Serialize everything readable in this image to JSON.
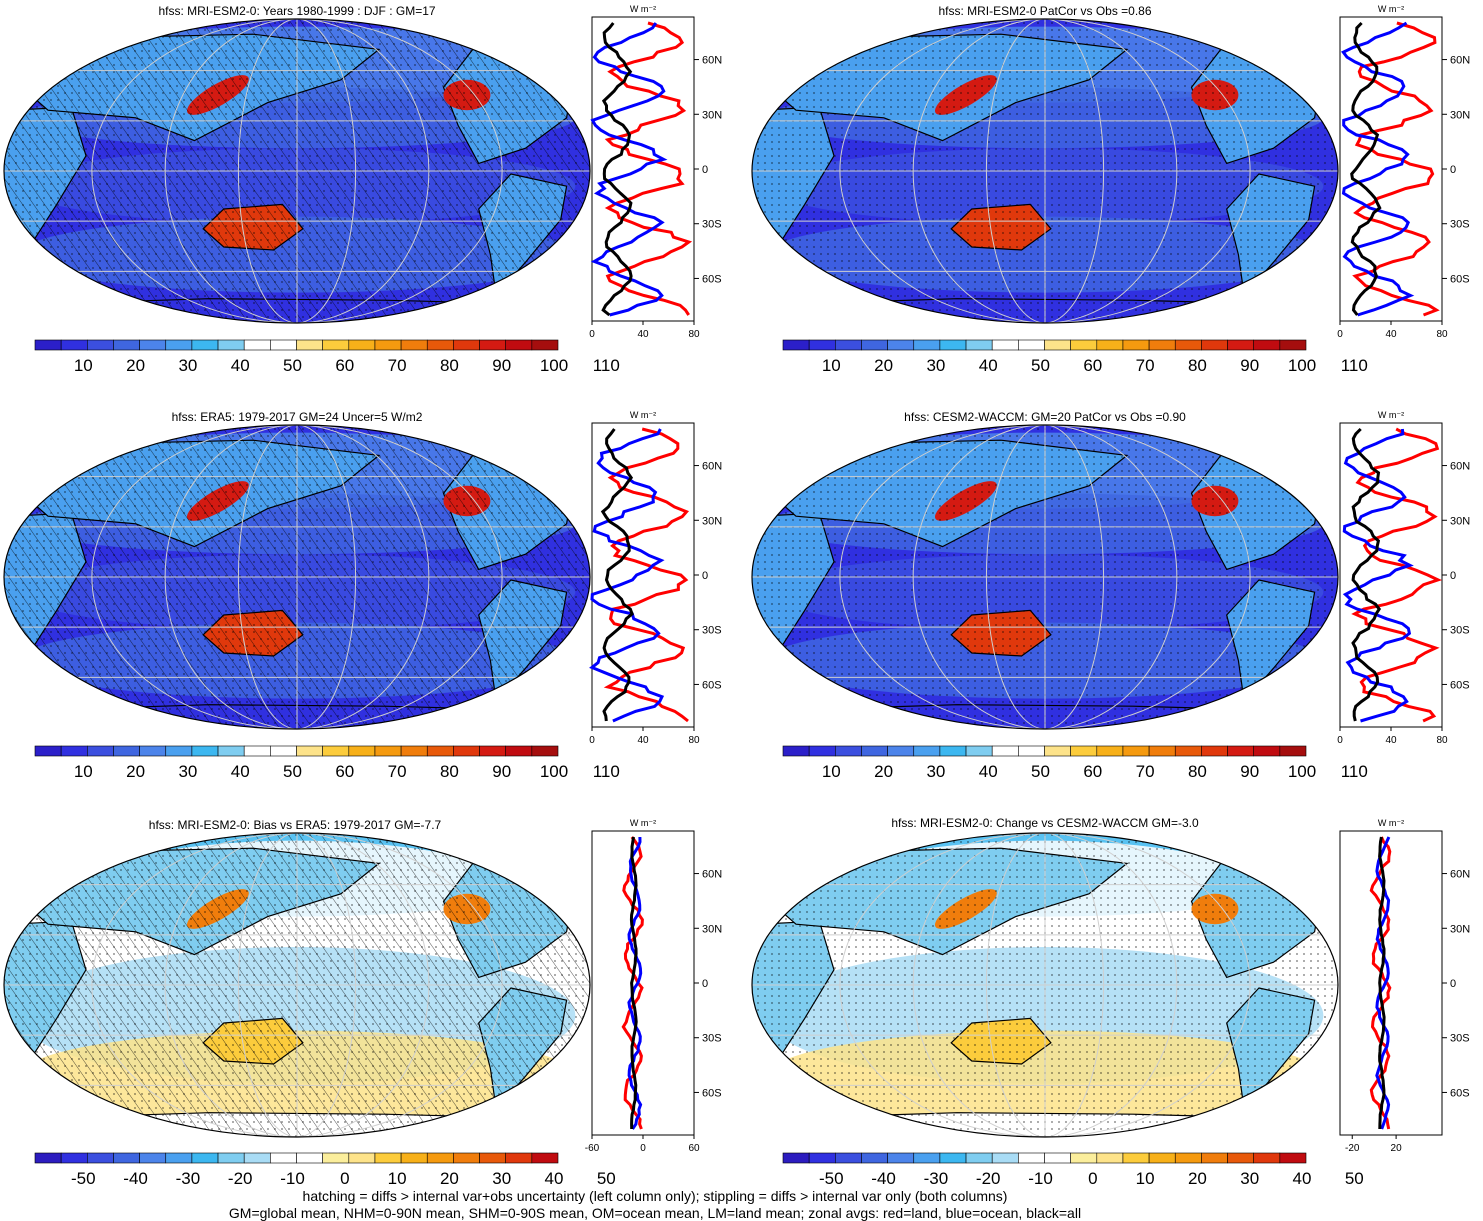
{
  "panels": [
    {
      "title": "hfss: MRI-ESM2-0: Years 1980-1999 : DJF : GM=17",
      "kind": "abs",
      "hatch": true,
      "colorbar": [
        "10",
        "20",
        "30",
        "40",
        "50",
        "60",
        "70",
        "80",
        "90",
        "100",
        "110"
      ],
      "profile": {
        "unit": "W m⁻²",
        "xticks": [
          "0",
          "40",
          "80"
        ],
        "yticks": [
          "60N",
          "30N",
          "0",
          "30S",
          "60S"
        ]
      }
    },
    {
      "title": "hfss: MRI-ESM2-0 PatCor vs Obs =0.86",
      "kind": "abs",
      "hatch": false,
      "colorbar": [
        "10",
        "20",
        "30",
        "40",
        "50",
        "60",
        "70",
        "80",
        "90",
        "100",
        "110"
      ],
      "profile": {
        "unit": "W m⁻²",
        "xticks": [
          "0",
          "40",
          "80"
        ],
        "yticks": [
          "60N",
          "30N",
          "0",
          "30S",
          "60S"
        ]
      }
    },
    {
      "title": "hfss: ERA5: 1979-2017 GM=24 Uncer=5 W/m2",
      "kind": "abs",
      "hatch": true,
      "colorbar": [
        "10",
        "20",
        "30",
        "40",
        "50",
        "60",
        "70",
        "80",
        "90",
        "100",
        "110"
      ],
      "profile": {
        "unit": "W m⁻²",
        "xticks": [
          "0",
          "40",
          "80"
        ],
        "yticks": [
          "60N",
          "30N",
          "0",
          "30S",
          "60S"
        ]
      }
    },
    {
      "title": "hfss: CESM2-WACCM: GM=20 PatCor vs Obs =0.90",
      "kind": "abs",
      "hatch": false,
      "colorbar": [
        "10",
        "20",
        "30",
        "40",
        "50",
        "60",
        "70",
        "80",
        "90",
        "100",
        "110"
      ],
      "profile": {
        "unit": "W m⁻²",
        "xticks": [
          "0",
          "40",
          "80"
        ],
        "yticks": [
          "60N",
          "30N",
          "0",
          "30S",
          "60S"
        ]
      }
    },
    {
      "title": "hfss: MRI-ESM2-0: Bias vs ERA5: 1979-2017 GM=-7.7",
      "kind": "diff",
      "hatch": true,
      "colorbar": [
        "-50",
        "-40",
        "-30",
        "-20",
        "-10",
        "0",
        "10",
        "20",
        "30",
        "40",
        "50"
      ],
      "profile": {
        "unit": "W m⁻²",
        "xticks": [
          "-60",
          "0",
          "60"
        ],
        "yticks": [
          "60N",
          "30N",
          "0",
          "30S",
          "60S"
        ]
      }
    },
    {
      "title": "hfss: MRI-ESM2-0: Change vs CESM2-WACCM GM=-3.0",
      "kind": "diff",
      "hatch": false,
      "colorbar": [
        "-50",
        "-40",
        "-30",
        "-20",
        "-10",
        "0",
        "10",
        "20",
        "30",
        "40",
        "50"
      ],
      "profile": {
        "unit": "W m⁻²",
        "xticks": [
          "-20",
          "20"
        ],
        "yticks": [
          "60N",
          "30N",
          "0",
          "30S",
          "60S"
        ]
      }
    }
  ],
  "colors": {
    "abs_scale": [
      "#2b1fc9",
      "#3030e0",
      "#3b4fdf",
      "#3f66e0",
      "#4c84ea",
      "#4aa0ef",
      "#3cb7f0",
      "#7fcdf0",
      "#ffffff",
      "#ffffff",
      "#fde38a",
      "#fccc3c",
      "#f7b019",
      "#f59a0f",
      "#f07d0c",
      "#e8590a",
      "#e0380c",
      "#d41a12",
      "#c00b10",
      "#a50e0e"
    ],
    "diff_scale": [
      "#2c1cbf",
      "#3030e0",
      "#3b4fdf",
      "#3f66e0",
      "#4c84ea",
      "#4aa0ef",
      "#3cb7f0",
      "#7fcdf0",
      "#a9dcf5",
      "#ffffff",
      "#ffffff",
      "#fbee9c",
      "#fde38a",
      "#fccc3c",
      "#f7b019",
      "#f59a0f",
      "#f07d0c",
      "#e8590a",
      "#e0380c",
      "#c00b10"
    ],
    "land": "#red",
    "profile_land": "#ff0000",
    "profile_ocean": "#0000ff",
    "profile_all": "#000000"
  },
  "footer": {
    "line1": "hatching = diffs > internal var+obs uncertainty (left column only); stippling = diffs > internal var only (both columns)",
    "line2": "GM=global mean, NHM=0-90N mean, SHM=0-90S mean, OM=ocean mean, LM=land mean; zonal avgs: red=land, blue=ocean, black=all"
  }
}
